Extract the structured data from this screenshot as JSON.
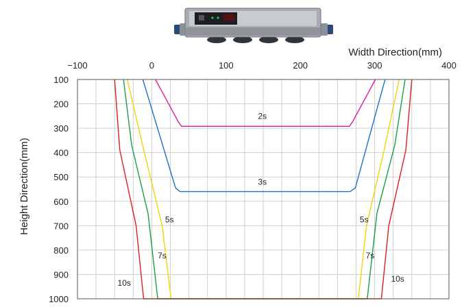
{
  "chart_data": {
    "type": "line",
    "xlabel": "Width Direction(mm)",
    "ylabel": "Height Direction(mm)",
    "xlim": [
      -100,
      400
    ],
    "ylim": [
      100,
      1000
    ],
    "y_inverted": true,
    "x_ticks": [
      "−100",
      "0",
      "100",
      "200",
      "300",
      "400"
    ],
    "y_ticks": [
      "100",
      "200",
      "300",
      "400",
      "500",
      "600",
      "700",
      "800",
      "900",
      "1000"
    ],
    "grid": true,
    "series": [
      {
        "name": "2s",
        "color": "#e0199b",
        "x": [
          5,
          36,
          40,
          266,
          270,
          301
        ],
        "y": [
          100,
          275,
          292,
          292,
          275,
          100
        ]
      },
      {
        "name": "3s",
        "color": "#1f6fc0",
        "x": [
          -12,
          32,
          38,
          267,
          274,
          314
        ],
        "y": [
          100,
          545,
          560,
          560,
          545,
          100
        ]
      },
      {
        "name": "5s",
        "color": "#f2d500",
        "x": [
          -33,
          -10,
          14,
          26,
          278,
          289,
          312,
          333
        ],
        "y": [
          100,
          400,
          700,
          1000,
          1000,
          700,
          400,
          100
        ]
      },
      {
        "name": "7s",
        "color": "#13a04c",
        "x": [
          -38,
          -27,
          -5,
          8,
          290,
          303,
          327,
          341
        ],
        "y": [
          100,
          370,
          650,
          1000,
          1000,
          650,
          370,
          100
        ]
      },
      {
        "name": "10s",
        "color": "#e01b1b",
        "x": [
          -50,
          -43,
          -21,
          -11,
          309,
          319,
          342,
          350
        ],
        "y": [
          100,
          390,
          700,
          1000,
          1000,
          700,
          390,
          100
        ]
      }
    ],
    "annotations": [
      {
        "text": "2s",
        "x": 143,
        "y": 250
      },
      {
        "text": "3s",
        "x": 143,
        "y": 520
      },
      {
        "text": "5s",
        "x": 18,
        "y": 675
      },
      {
        "text": "5s",
        "x": 280,
        "y": 675
      },
      {
        "text": "7s",
        "x": 8,
        "y": 823
      },
      {
        "text": "7s",
        "x": 288,
        "y": 823
      },
      {
        "text": "10s",
        "x": -46,
        "y": 935
      },
      {
        "text": "10s",
        "x": 322,
        "y": 918
      }
    ]
  },
  "device": {
    "label": "sensor device"
  }
}
